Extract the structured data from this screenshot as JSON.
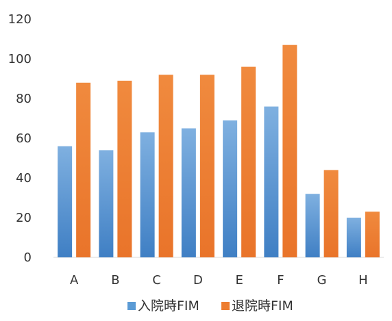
{
  "chart_data": {
    "type": "bar",
    "categories": [
      "A",
      "B",
      "C",
      "D",
      "E",
      "F",
      "G",
      "H"
    ],
    "series": [
      {
        "name": "入院時FIM",
        "color": "#5b9bd5",
        "values": [
          56,
          54,
          63,
          65,
          69,
          76,
          32,
          20
        ]
      },
      {
        "name": "退院時FIM",
        "color": "#ed7d31",
        "values": [
          88,
          89,
          92,
          92,
          96,
          107,
          44,
          23
        ]
      }
    ],
    "ylim": [
      0,
      120
    ],
    "yticks": [
      0,
      20,
      40,
      60,
      80,
      100,
      120
    ],
    "grid": false,
    "legend_position": "bottom"
  }
}
